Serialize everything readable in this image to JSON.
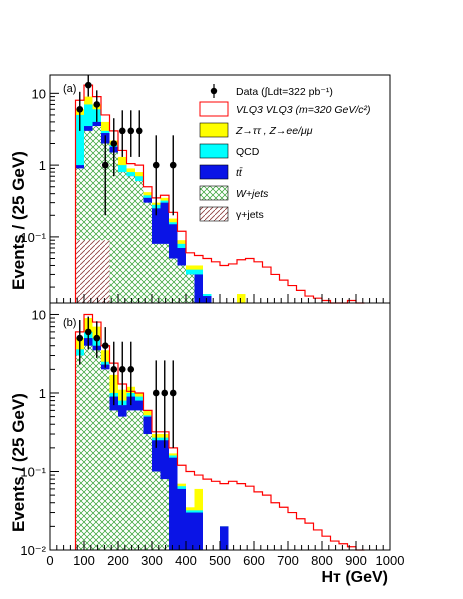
{
  "chart_data": [
    {
      "type": "bar",
      "panel_label": "(a)",
      "ylabel": "Events / (25 GeV)",
      "xlim": [
        0,
        1000
      ],
      "y_scale": "log",
      "ylim": [
        0.012,
        18
      ],
      "ytick_labels": [
        {
          "value": 10,
          "label": "10"
        },
        {
          "value": 1,
          "label": "1"
        },
        {
          "value": 0.1,
          "label": "10⁻¹"
        }
      ],
      "bin_width": 25,
      "stack": [
        {
          "name": "γ+jets",
          "color": "#c9a0a0",
          "pattern": "diag-brown",
          "start": 75,
          "values": [
            0.09,
            0.09,
            0.09,
            0.09
          ]
        },
        {
          "name": "W+jets",
          "color": "#3cc63c",
          "pattern": "cross-green",
          "start": 75,
          "values": [
            0.9,
            3.0,
            3.5,
            2.0,
            1.5,
            0.8,
            0.7,
            0.6,
            0.3,
            0.08,
            0.08,
            0.05,
            0.04,
            0.03
          ]
        },
        {
          "name": "tt̄",
          "color": "#0a14e6",
          "start": 75,
          "values": [
            1.0,
            3.5,
            4.0,
            2.8,
            1.8,
            0.8,
            0.7,
            0.6,
            0.35,
            0.25,
            0.3,
            0.15,
            0.07,
            0.03,
            0.03,
            0.015
          ]
        },
        {
          "name": "QCD",
          "color": "#00ffff",
          "start": 75,
          "values": [
            5.0,
            7.0,
            6.0,
            3.0,
            1.9,
            1.0,
            0.8,
            0.7,
            0.38,
            0.28,
            0.32,
            0.16,
            0.08,
            0.035,
            0.035,
            0.016
          ]
        },
        {
          "name": "Z→ττ , Z→ee/μμ",
          "color": "#ffff00",
          "start": 75,
          "values": [
            6.0,
            9.0,
            7.0,
            4.0,
            2.2,
            1.3,
            0.9,
            0.8,
            0.42,
            0.3,
            0.35,
            0.18,
            0.09,
            0.04,
            0.04,
            0.016,
            0,
            0,
            0,
            0.016
          ]
        }
      ],
      "signal": {
        "name": "VLQ3 VLQ3 (m=320 GeV/c²)",
        "color": "#ff0000",
        "start": 75,
        "values": [
          8,
          13,
          9,
          5,
          3,
          1.6,
          1.05,
          1.0,
          0.5,
          0.35,
          0.38,
          0.22,
          0.12,
          0.06,
          0.055,
          0.05,
          0.045,
          0.04,
          0.042,
          0.048,
          0.05,
          0.045,
          0.038,
          0.03,
          0.025,
          0.021,
          0.018,
          0.015,
          0.014,
          0.013,
          0.012,
          0.012,
          0.013,
          0.012
        ]
      },
      "data_points": {
        "name": "Data (∫Ldt=322 pb⁻¹)",
        "x": [
          87.5,
          112.5,
          137.5,
          162.5,
          187.5,
          212.5,
          237.5,
          262.5,
          312.5,
          362.5
        ],
        "y": [
          6,
          13,
          7,
          1,
          2,
          3,
          3,
          3,
          1,
          1
        ],
        "err": [
          [
            3,
            4.5
          ],
          [
            4,
            5.5
          ],
          [
            3,
            4
          ],
          [
            0.8,
            1.6
          ],
          [
            1.3,
            2.5
          ],
          [
            1.7,
            2.8
          ],
          [
            1.7,
            2.8
          ],
          [
            1.7,
            2.8
          ],
          [
            0.8,
            1.6
          ],
          [
            0.8,
            1.6
          ]
        ]
      }
    },
    {
      "type": "bar",
      "panel_label": "(b)",
      "ylabel": "Events / (25 GeV)",
      "xlabel": "Hᴛ (GeV)",
      "xlim": [
        0,
        1000
      ],
      "y_scale": "log",
      "ylim": [
        0.01,
        14
      ],
      "ytick_labels": [
        {
          "value": 10,
          "label": "10"
        },
        {
          "value": 1,
          "label": "1"
        },
        {
          "value": 0.1,
          "label": "10⁻¹"
        },
        {
          "value": 0.01,
          "label": "10⁻²"
        }
      ],
      "xtick_labels": [
        "0",
        "100",
        "200",
        "300",
        "400",
        "500",
        "600",
        "700",
        "800",
        "900",
        "1000"
      ],
      "bin_width": 25,
      "stack": [
        {
          "name": "W+jets",
          "color": "#3cc63c",
          "pattern": "cross-green",
          "start": 75,
          "values": [
            3.0,
            4.0,
            3.5,
            2.0,
            0.6,
            0.5,
            0.6,
            0.6,
            0.3,
            0.1,
            0.08
          ]
        },
        {
          "name": "tt̄",
          "color": "#0a14e6",
          "start": 75,
          "values": [
            3.0,
            5.0,
            4.0,
            2.3,
            0.9,
            0.7,
            0.9,
            0.8,
            0.5,
            0.25,
            0.25,
            0.15,
            0.06,
            0.03,
            0.03,
            0,
            0,
            0.02
          ]
        },
        {
          "name": "QCD",
          "color": "#00ffff",
          "start": 75,
          "values": [
            3.6,
            6.0,
            5.0,
            2.5,
            1.0,
            0.8,
            1.0,
            0.9,
            0.52,
            0.27,
            0.27,
            0.16,
            0.065,
            0.032,
            0.032,
            0,
            0,
            0.02
          ]
        },
        {
          "name": "Z→ττ , Z→ee/μμ",
          "color": "#ffff00",
          "start": 75,
          "values": [
            5.0,
            9.0,
            7.0,
            3.5,
            1.7,
            1.1,
            1.2,
            1.0,
            0.6,
            0.3,
            0.3,
            0.17,
            0.07,
            0.035,
            0.06,
            0,
            0,
            0.02
          ]
        }
      ],
      "signal": {
        "name": "VLQ3 VLQ3 (m=320 GeV/c²)",
        "color": "#ff0000",
        "start": 75,
        "values": [
          6,
          10,
          8,
          4,
          2.4,
          1.3,
          1.05,
          1.0,
          0.6,
          0.32,
          0.32,
          0.2,
          0.12,
          0.1,
          0.09,
          0.08,
          0.075,
          0.07,
          0.075,
          0.07,
          0.065,
          0.055,
          0.05,
          0.04,
          0.035,
          0.03,
          0.025,
          0.022,
          0.018,
          0.015,
          0.013,
          0.012,
          0.011,
          0.01
        ]
      },
      "data_points": {
        "name": "Data",
        "x": [
          87.5,
          112.5,
          137.5,
          162.5,
          187.5,
          212.5,
          237.5,
          312.5,
          337.5,
          362.5
        ],
        "y": [
          5,
          6,
          5,
          4,
          2,
          2,
          2,
          1,
          1,
          1
        ],
        "err": [
          [
            2.7,
            3.5
          ],
          [
            2.4,
            3.4
          ],
          [
            2.2,
            3.2
          ],
          [
            1.9,
            2.9
          ],
          [
            1.3,
            2.5
          ],
          [
            1.3,
            2.5
          ],
          [
            1.3,
            2.5
          ],
          [
            0.8,
            1.6
          ],
          [
            0.8,
            1.6
          ],
          [
            0.8,
            1.6
          ]
        ]
      }
    }
  ],
  "legend": {
    "data_label": "Data (∫Ldt=322 pb⁻¹)",
    "signal_label": "VLQ3 VLQ3 (m=320 GeV/c²)",
    "ztt_label": "Z→ττ , Z→ee/μμ",
    "qcd_label": "QCD",
    "ttbar_label": "tt̄",
    "wjets_label": "W+jets",
    "gamma_label": "γ+jets"
  }
}
